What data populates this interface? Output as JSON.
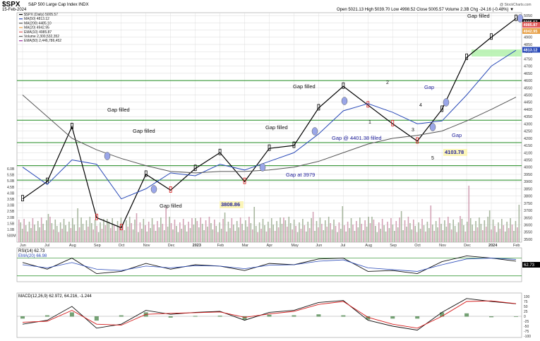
{
  "header": {
    "symbol": "$SPX",
    "description": "S&P 500 Large Cap Index  INDX",
    "date": "15-Feb-2024",
    "watermark": "@ StockCharts.com",
    "quote": "Open 5021.13  High 5039.70  Low 4998.52  Close 5005.57  Volume 2.3B  Chg -24.16 (-0.48%) ▼",
    "legend": [
      "$SPX (Daily) 5005.57",
      "MA(50) 4813.12",
      "MA(200) 4485.10",
      "MA(20) 4942.95",
      "EMA(10) 4985.87",
      "Volume 2,300,532,352",
      "EMA(50) 2,446,786,452"
    ]
  },
  "colors": {
    "up": "#000000",
    "down": "#d61a1a",
    "ma50": "#2a4ab8",
    "ma200": "#555555",
    "ma20": "#e8a24a",
    "ema10": "#e05a5a",
    "grid": "#d8d8d8",
    "support": "#1f8a1f",
    "fill_green": "#aef0a6",
    "annot": "#1f1f9a",
    "rsi": "#000000",
    "macd": "#000000",
    "signal": "#d41a1a",
    "hist": "#3a7a3a",
    "volume_up": "#a9b8a0",
    "volume_down": "#d3a3b6"
  },
  "chart_data": [
    {
      "type": "line",
      "title": "$SPX (Daily) 5005.57",
      "series": [
        {
          "name": "$SPX (Daily) 5005.57",
          "x": [
            "2022-06",
            "2022-07",
            "2022-08",
            "2022-09",
            "2022-10",
            "2022-11",
            "2022-12",
            "2023-01",
            "2023-02",
            "2023-03",
            "2023-04",
            "2023-05",
            "2023-06",
            "2023-07",
            "2023-08",
            "2023-09",
            "2023-10",
            "2023-11",
            "2023-12",
            "2024-01",
            "2024-02"
          ],
          "values": [
            3780,
            3900,
            4280,
            3650,
            3580,
            3950,
            3840,
            3990,
            4100,
            3900,
            4130,
            4150,
            4410,
            4560,
            4430,
            4300,
            4180,
            4400,
            4760,
            4900,
            5030
          ]
        },
        {
          "name": "MA(50) 4813.12",
          "values": [
            4000,
            3880,
            4050,
            4020,
            3780,
            3850,
            3960,
            3940,
            4020,
            3980,
            4040,
            4100,
            4230,
            4390,
            4440,
            4380,
            4300,
            4320,
            4500,
            4700,
            4810
          ]
        },
        {
          "name": "MA(200) 4485.10",
          "values": [
            4500,
            4350,
            4200,
            4120,
            4060,
            4010,
            3970,
            3960,
            3970,
            3970,
            3980,
            4000,
            4040,
            4100,
            4160,
            4200,
            4220,
            4250,
            4320,
            4400,
            4485
          ]
        }
      ],
      "x_tick_labels": [
        "Jun",
        "Jul",
        "Aug",
        "Sep",
        "Oct",
        "Nov",
        "Dec",
        "2023",
        "Feb",
        "Mar",
        "Apr",
        "May",
        "Jun",
        "Jul",
        "Aug",
        "Sep",
        "Oct",
        "Nov",
        "Dec",
        "2024",
        "Feb"
      ],
      "y_tick_labels": [
        "3500",
        "3550",
        "3600",
        "3650",
        "3700",
        "3750",
        "3800",
        "3850",
        "3900",
        "3950",
        "4000",
        "4050",
        "4100",
        "4150",
        "4200",
        "4250",
        "4300",
        "4350",
        "4400",
        "4450",
        "4500",
        "4550",
        "4600",
        "4650",
        "4700",
        "4750",
        "4800",
        "4850",
        "4900",
        "4950",
        "5000",
        "5050"
      ],
      "volume_tick_labels": [
        "6.0B",
        "5.5B",
        "5.0B",
        "4.5B",
        "4.0B",
        "3.5B",
        "3.0B",
        "2.5B",
        "2.0B",
        "1.5B",
        "1.0B",
        "500M"
      ],
      "ylim": [
        3480,
        5070
      ],
      "support_lines": [
        4600,
        4325,
        4170,
        4010,
        3910
      ],
      "annotations": [
        "Gap filled",
        "Gap filled",
        "Gap filled",
        "Gap filled",
        "Gap filled",
        "Gap filled",
        "Gap at 3979",
        "3808.86",
        "Gap @ 4401.38 filled",
        "4103.78",
        "Gap",
        "Gap",
        "1",
        "2",
        "3",
        "4",
        "5"
      ],
      "price_boxes": [
        "5005.57",
        "4985.87",
        "4942.95",
        "4813.12"
      ]
    },
    {
      "type": "line",
      "title": "RSI(14) 62.73",
      "series": [
        {
          "name": "RSI(14) 62.73",
          "values": [
            60,
            45,
            70,
            35,
            40,
            58,
            45,
            55,
            52,
            42,
            58,
            55,
            68,
            70,
            40,
            42,
            35,
            62,
            75,
            70,
            63
          ]
        },
        {
          "name": "EMA(20) 66.98",
          "values": [
            55,
            48,
            60,
            45,
            42,
            52,
            48,
            53,
            52,
            46,
            54,
            55,
            63,
            66,
            48,
            44,
            40,
            55,
            68,
            70,
            67
          ]
        }
      ],
      "y_tick_labels": [
        "62.73"
      ]
    },
    {
      "type": "line",
      "title": "MACD(12,26,9) 62.972, 64.216, -1.244",
      "series": [
        {
          "name": "MACD",
          "values": [
            -40,
            -20,
            50,
            -60,
            -40,
            30,
            10,
            20,
            25,
            -20,
            20,
            30,
            70,
            80,
            -20,
            -50,
            -70,
            20,
            90,
            75,
            63
          ]
        },
        {
          "name": "Signal",
          "values": [
            -30,
            -25,
            30,
            -40,
            -45,
            10,
            15,
            18,
            22,
            -5,
            12,
            25,
            60,
            75,
            -5,
            -40,
            -60,
            0,
            75,
            78,
            64
          ]
        }
      ],
      "y_tick_labels": [
        "100",
        "75",
        "50",
        "25",
        "0",
        "-25",
        "-50",
        "-75",
        "-100"
      ]
    }
  ]
}
